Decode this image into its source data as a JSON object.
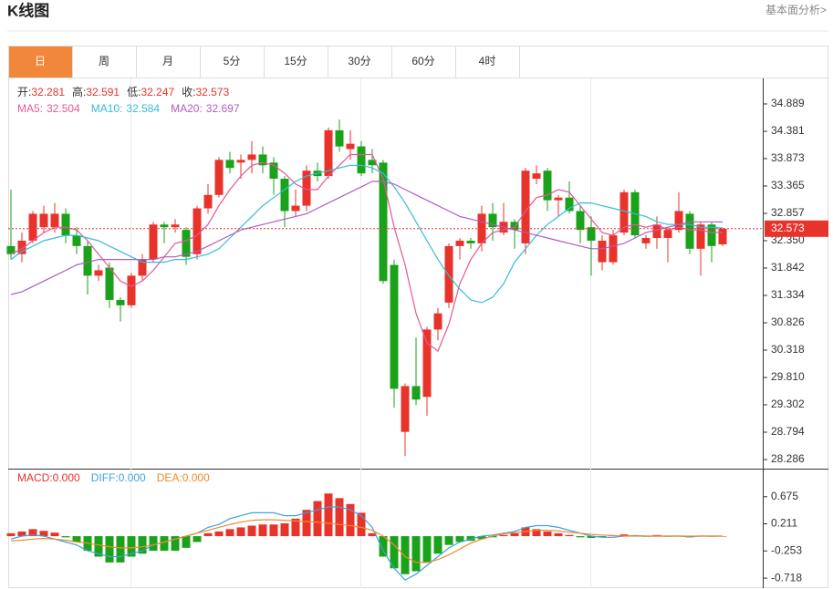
{
  "page": {
    "title": "K线图",
    "link": "基本面分析>",
    "tabs": [
      "日",
      "周",
      "月",
      "5分",
      "15分",
      "30分",
      "60分",
      "4时"
    ],
    "active_tab": 0
  },
  "chart_data": [
    {
      "type": "candlestick",
      "up_color": "#e8332b",
      "down_color": "#1ba21b",
      "last_price_line": true,
      "ylim": [
        28.134,
        35.346
      ],
      "yticks": [
        34.889,
        34.381,
        33.873,
        33.365,
        32.857,
        {
          "value": 32.35,
          "label": "32.350"
        },
        31.842,
        31.334,
        30.826,
        30.318,
        {
          "value": 29.81,
          "label": "29.810"
        },
        29.302,
        28.794,
        28.286
      ],
      "ohlc_readout": [
        "开:",
        "高:",
        "低:",
        "收:"
      ],
      "ma_readout": [
        "MA5:",
        "MA10:",
        "MA20:"
      ],
      "open": [
        32.25,
        32.1,
        32.35,
        32.6,
        32.6,
        32.85,
        32.45,
        32.25,
        31.7,
        31.85,
        31.25,
        31.15,
        31.7,
        32.0,
        32.65,
        32.6,
        32.55,
        32.1,
        32.95,
        33.2,
        33.85,
        33.8,
        33.85,
        33.95,
        33.8,
        33.5,
        32.9,
        33.0,
        33.65,
        33.55,
        34.4,
        34.05,
        34.1,
        33.85,
        33.8,
        31.9,
        28.8,
        29.65,
        29.45,
        30.7,
        31.2,
        32.25,
        32.35,
        32.3,
        32.85,
        32.5,
        32.7,
        32.3,
        33.5,
        33.65,
        33.1,
        33.15,
        32.9,
        32.6,
        31.95,
        31.95,
        32.5,
        33.25,
        32.3,
        32.4,
        32.4,
        32.55,
        32.85,
        32.2,
        32.65,
        32.281
      ],
      "high": [
        33.3,
        32.5,
        32.9,
        33.0,
        33.05,
        32.95,
        32.6,
        32.35,
        31.9,
        31.95,
        31.3,
        31.75,
        32.1,
        32.7,
        32.7,
        32.75,
        32.6,
        33.0,
        33.4,
        33.9,
        34.0,
        33.95,
        34.2,
        34.1,
        33.9,
        33.55,
        33.3,
        33.75,
        33.8,
        34.45,
        34.6,
        34.4,
        34.2,
        34.05,
        33.85,
        32.0,
        29.7,
        30.55,
        30.75,
        31.1,
        32.3,
        32.4,
        32.4,
        33.0,
        33.05,
        33.05,
        32.75,
        33.7,
        33.75,
        33.7,
        33.2,
        33.45,
        33.0,
        32.8,
        32.45,
        32.55,
        33.3,
        33.3,
        32.45,
        32.8,
        32.6,
        33.25,
        32.9,
        32.7,
        32.7,
        32.591
      ],
      "low": [
        32.0,
        31.95,
        32.3,
        32.5,
        32.5,
        32.3,
        32.1,
        31.35,
        31.6,
        31.1,
        30.85,
        31.1,
        31.6,
        31.95,
        32.3,
        32.5,
        31.9,
        32.0,
        32.85,
        33.15,
        33.6,
        33.5,
        33.6,
        33.6,
        33.2,
        32.6,
        32.8,
        32.9,
        33.45,
        33.5,
        34.0,
        33.85,
        33.55,
        33.6,
        31.55,
        29.25,
        28.35,
        29.3,
        29.1,
        30.5,
        31.1,
        32.0,
        32.2,
        32.15,
        32.35,
        32.45,
        32.2,
        32.1,
        33.4,
        32.9,
        32.8,
        32.85,
        32.3,
        31.7,
        31.8,
        31.9,
        32.45,
        32.4,
        32.2,
        32.2,
        31.95,
        32.5,
        32.1,
        31.7,
        31.95,
        32.247
      ],
      "close": [
        32.1,
        32.35,
        32.85,
        32.85,
        32.85,
        32.45,
        32.25,
        31.7,
        31.8,
        31.25,
        31.15,
        31.7,
        32.0,
        32.65,
        32.6,
        32.65,
        32.05,
        32.95,
        33.2,
        33.85,
        33.7,
        33.85,
        33.95,
        33.75,
        33.5,
        32.9,
        33.0,
        33.65,
        33.55,
        34.4,
        34.1,
        34.15,
        33.6,
        33.75,
        31.6,
        29.6,
        29.65,
        29.4,
        30.7,
        31.0,
        32.25,
        32.35,
        32.3,
        32.85,
        32.6,
        32.7,
        32.55,
        33.65,
        33.6,
        33.1,
        33.15,
        32.9,
        32.55,
        32.35,
        32.35,
        32.45,
        33.25,
        32.45,
        32.4,
        32.65,
        32.55,
        32.9,
        32.2,
        32.65,
        32.25,
        32.573
      ],
      "series": [
        {
          "color": "#e2579b",
          "values": [
            32.1,
            32.2,
            32.35,
            32.5,
            32.6,
            32.6,
            32.55,
            32.35,
            32.1,
            31.85,
            31.6,
            31.5,
            31.6,
            31.8,
            32.05,
            32.3,
            32.35,
            32.45,
            32.65,
            33.0,
            33.3,
            33.55,
            33.75,
            33.8,
            33.75,
            33.6,
            33.4,
            33.3,
            33.3,
            33.55,
            33.75,
            33.95,
            33.95,
            33.95,
            33.5,
            32.6,
            31.9,
            31.0,
            30.45,
            30.3,
            30.8,
            31.55,
            32.0,
            32.3,
            32.5,
            32.55,
            32.6,
            32.9,
            33.15,
            33.2,
            33.3,
            33.25,
            33.0,
            32.75,
            32.5,
            32.45,
            32.6,
            32.65,
            32.6,
            32.65,
            32.55,
            32.6,
            32.55,
            32.55,
            32.5,
            32.504
          ]
        },
        {
          "color": "#35bdd6",
          "values": [
            32.0,
            32.15,
            32.25,
            32.35,
            32.4,
            32.45,
            32.45,
            32.4,
            32.35,
            32.25,
            32.15,
            32.05,
            31.95,
            31.95,
            31.95,
            32.0,
            32.0,
            32.05,
            32.1,
            32.2,
            32.4,
            32.6,
            32.8,
            33.0,
            33.15,
            33.3,
            33.45,
            33.55,
            33.6,
            33.65,
            33.7,
            33.75,
            33.75,
            33.7,
            33.6,
            33.35,
            33.05,
            32.7,
            32.35,
            32.0,
            31.7,
            31.45,
            31.25,
            31.2,
            31.3,
            31.55,
            31.95,
            32.2,
            32.45,
            32.65,
            32.8,
            32.95,
            33.05,
            33.05,
            33.0,
            32.95,
            32.9,
            32.85,
            32.8,
            32.7,
            32.65,
            32.65,
            32.65,
            32.6,
            32.6,
            32.584
          ]
        },
        {
          "color": "#b25bc6",
          "values": [
            31.35,
            31.4,
            31.5,
            31.6,
            31.7,
            31.8,
            31.9,
            31.95,
            32.0,
            32.0,
            32.0,
            32.0,
            32.0,
            32.0,
            32.05,
            32.05,
            32.1,
            32.15,
            32.25,
            32.35,
            32.45,
            32.55,
            32.6,
            32.65,
            32.7,
            32.75,
            32.8,
            32.85,
            32.95,
            33.05,
            33.15,
            33.25,
            33.35,
            33.45,
            33.45,
            33.4,
            33.3,
            33.2,
            33.1,
            33.0,
            32.9,
            32.8,
            32.75,
            32.7,
            32.65,
            32.6,
            32.55,
            32.5,
            32.45,
            32.4,
            32.35,
            32.3,
            32.25,
            32.2,
            32.2,
            32.25,
            32.3,
            32.4,
            32.5,
            32.55,
            32.6,
            32.65,
            32.7,
            32.7,
            32.7,
            32.697
          ]
        }
      ]
    },
    {
      "type": "macd",
      "up_color": "#e8332b",
      "down_color": "#1ba21b",
      "ylim": [
        -0.888,
        1.139
      ],
      "yticks": [
        0.675,
        0.211,
        -0.253,
        -0.718
      ],
      "readouts": [
        {
          "label": "MACD:",
          "text": "0.000",
          "color": "#e8332b"
        },
        {
          "label": "DIFF:",
          "text": "0.000",
          "color": "#3ea2dc"
        },
        {
          "label": "DEA:",
          "text": "0.000",
          "color": "#ef8a2c"
        }
      ],
      "values": [
        0.05,
        0.08,
        0.12,
        0.09,
        0.06,
        -0.02,
        -0.1,
        -0.25,
        -0.35,
        -0.45,
        -0.45,
        -0.35,
        -0.3,
        -0.25,
        -0.25,
        -0.25,
        -0.2,
        -0.1,
        0.05,
        0.08,
        0.12,
        0.15,
        0.18,
        0.2,
        0.2,
        0.22,
        0.3,
        0.45,
        0.6,
        0.73,
        0.65,
        0.55,
        0.4,
        0.05,
        -0.35,
        -0.55,
        -0.65,
        -0.6,
        -0.45,
        -0.3,
        -0.15,
        -0.1,
        -0.08,
        -0.05,
        -0.02,
        0.02,
        0.05,
        0.15,
        0.12,
        0.08,
        0.05,
        0.02,
        -0.02,
        -0.03,
        -0.02,
        0.01,
        0.03,
        0.01,
        -0.01,
        0.02,
        -0.01,
        0.01,
        -0.02,
        0.01,
        -0.01,
        0
      ],
      "series": [
        {
          "color": "#3ea2dc",
          "values": [
            -0.05,
            0.0,
            0.02,
            0.0,
            -0.05,
            -0.1,
            -0.15,
            -0.25,
            -0.3,
            -0.35,
            -0.35,
            -0.3,
            -0.25,
            -0.15,
            -0.1,
            -0.05,
            0.0,
            0.05,
            0.15,
            0.2,
            0.3,
            0.35,
            0.4,
            0.4,
            0.4,
            0.35,
            0.35,
            0.4,
            0.45,
            0.5,
            0.5,
            0.45,
            0.35,
            0.15,
            -0.25,
            -0.55,
            -0.75,
            -0.65,
            -0.5,
            -0.35,
            -0.2,
            -0.1,
            -0.05,
            0.0,
            0.02,
            0.05,
            0.08,
            0.15,
            0.18,
            0.18,
            0.15,
            0.1,
            0.05,
            0.0,
            -0.02,
            -0.02,
            0.0,
            0.01,
            0.0,
            0.0,
            0.0,
            0.0,
            -0.01,
            0.0,
            0.0,
            0
          ]
        },
        {
          "color": "#ef8a2c",
          "values": [
            -0.08,
            -0.07,
            -0.05,
            -0.04,
            -0.05,
            -0.07,
            -0.1,
            -0.12,
            -0.15,
            -0.18,
            -0.2,
            -0.2,
            -0.18,
            -0.15,
            -0.1,
            -0.05,
            0.0,
            0.05,
            0.1,
            0.15,
            0.2,
            0.24,
            0.27,
            0.28,
            0.28,
            0.27,
            0.26,
            0.25,
            0.24,
            0.22,
            0.2,
            0.18,
            0.15,
            0.1,
            0.0,
            -0.15,
            -0.35,
            -0.45,
            -0.45,
            -0.4,
            -0.32,
            -0.22,
            -0.12,
            -0.05,
            0.0,
            0.04,
            0.06,
            0.08,
            0.1,
            0.1,
            0.09,
            0.07,
            0.05,
            0.03,
            0.02,
            0.01,
            0.0,
            0.0,
            0.0,
            0.0,
            0.0,
            0.0,
            0.0,
            0.0,
            0.0,
            0
          ]
        }
      ]
    }
  ]
}
